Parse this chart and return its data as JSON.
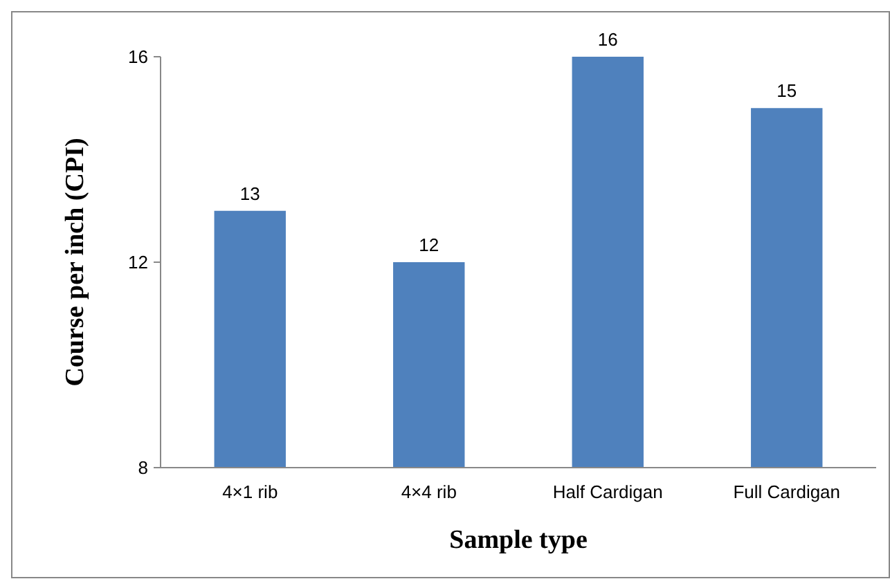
{
  "chart_data": {
    "type": "bar",
    "xlabel": "Sample type",
    "ylabel": "Course per inch (CPI)",
    "categories": [
      "4×1 rib",
      "4×4 rib",
      "Half Cardigan",
      "Full Cardigan"
    ],
    "values": [
      13,
      12,
      16,
      15
    ],
    "color": "#4f81bd",
    "ylim": [
      8,
      16
    ],
    "yticks": [
      8,
      12,
      16
    ],
    "data_labels": true,
    "grid": false
  }
}
